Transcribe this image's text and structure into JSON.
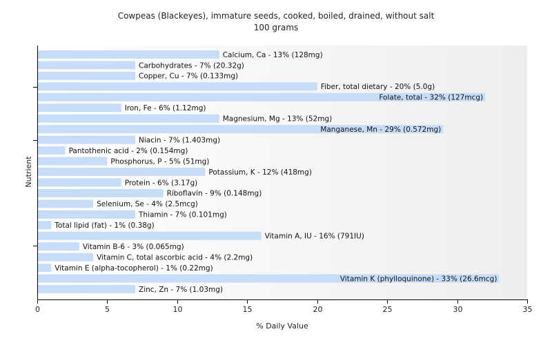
{
  "chart_data": {
    "type": "bar",
    "orientation": "horizontal",
    "title": "Cowpeas (Blackeyes), immature seeds, cooked, boiled, drained, without salt",
    "subtitle": "100 grams",
    "xlabel": "% Daily Value",
    "ylabel": "Nutrient",
    "xlim": [
      0,
      35
    ],
    "xticks": [
      0,
      5,
      10,
      15,
      20,
      25,
      30,
      35
    ],
    "grid": false,
    "bar_color": "#c6dcf7",
    "categories": [
      "Calcium, Ca",
      "Carbohydrates",
      "Copper, Cu",
      "Fiber, total dietary",
      "Folate, total",
      "Iron, Fe",
      "Magnesium, Mg",
      "Manganese, Mn",
      "Niacin",
      "Pantothenic acid",
      "Phosphorus, P",
      "Potassium, K",
      "Protein",
      "Riboflavin",
      "Selenium, Se",
      "Thiamin",
      "Total lipid (fat)",
      "Vitamin A, IU",
      "Vitamin B-6",
      "Vitamin C, total ascorbic acid",
      "Vitamin E (alpha-tocopherol)",
      "Vitamin K (phylloquinone)",
      "Zinc, Zn"
    ],
    "values": [
      13,
      7,
      7,
      20,
      32,
      6,
      13,
      29,
      7,
      2,
      5,
      12,
      6,
      9,
      4,
      7,
      1,
      16,
      3,
      4,
      1,
      33,
      7
    ],
    "labels": [
      "Calcium, Ca - 13% (128mg)",
      "Carbohydrates - 7% (20.32g)",
      "Copper, Cu - 7% (0.133mg)",
      "Fiber, total dietary - 20% (5.0g)",
      "Folate, total - 32% (127mcg)",
      "Iron, Fe - 6% (1.12mg)",
      "Magnesium, Mg - 13% (52mg)",
      "Manganese, Mn - 29% (0.572mg)",
      "Niacin - 7% (1.403mg)",
      "Pantothenic acid - 2% (0.154mg)",
      "Phosphorus, P - 5% (51mg)",
      "Potassium, K - 12% (418mg)",
      "Protein - 6% (3.17g)",
      "Riboflavin - 9% (0.148mg)",
      "Selenium, Se - 4% (2.5mcg)",
      "Thiamin - 7% (0.101mg)",
      "Total lipid (fat) - 1% (0.38g)",
      "Vitamin A, IU - 16% (791IU)",
      "Vitamin B-6 - 3% (0.065mg)",
      "Vitamin C, total ascorbic acid - 4% (2.2mg)",
      "Vitamin E (alpha-tocopherol) - 1% (0.22mg)",
      "Vitamin K (phylloquinone) - 33% (26.6mcg)",
      "Zinc, Zn - 7% (1.03mg)"
    ]
  }
}
